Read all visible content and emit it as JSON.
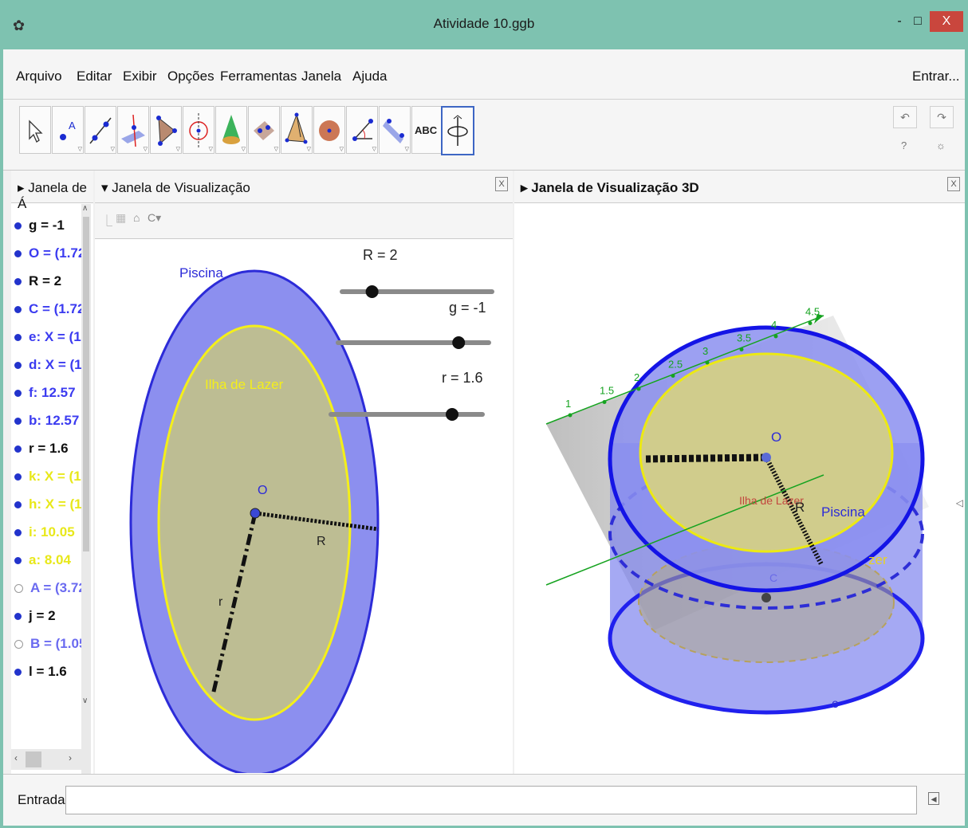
{
  "window": {
    "title": "Atividade 10.ggb",
    "minimize": "-",
    "maximize": "□",
    "close": "X"
  },
  "menu": {
    "items": [
      "Arquivo",
      "Editar",
      "Exibir",
      "Opções",
      "Ferramentas",
      "Janela",
      "Ajuda"
    ],
    "signin": "Entrar..."
  },
  "toolbar": {
    "text_tool_label": "ABC",
    "help": "?",
    "settings": "☼"
  },
  "algebra": {
    "title": "Janela de Á",
    "items": [
      {
        "text": "g = -1",
        "color": "#111111",
        "dot": "#2233cc"
      },
      {
        "text": "O = (1.72",
        "color": "#3b3bf0",
        "dot": "#2233cc"
      },
      {
        "text": "R = 2",
        "color": "#111111",
        "dot": "#2233cc"
      },
      {
        "text": "C = (1.72",
        "color": "#3b3bf0",
        "dot": "#2233cc"
      },
      {
        "text": "e: X = (1.",
        "color": "#3b3bf0",
        "dot": "#2233cc"
      },
      {
        "text": "d: X = (1",
        "color": "#3b3bf0",
        "dot": "#2233cc"
      },
      {
        "text": "f: 12.57",
        "color": "#3b3bf0",
        "dot": "#2233cc"
      },
      {
        "text": "b: 12.57",
        "color": "#3b3bf0",
        "dot": "#2233cc"
      },
      {
        "text": "r = 1.6",
        "color": "#111111",
        "dot": "#2233cc"
      },
      {
        "text": "k: X = (1.",
        "color": "#e8e81a",
        "dot": "#2233cc"
      },
      {
        "text": "h: X = (1",
        "color": "#e8e81a",
        "dot": "#2233cc"
      },
      {
        "text": "i: 10.05",
        "color": "#e8e81a",
        "dot": "#2233cc"
      },
      {
        "text": "a: 8.04",
        "color": "#e8e81a",
        "dot": "#2233cc"
      },
      {
        "text": "A = (3.72",
        "color": "#6a6af0",
        "dot": "none"
      },
      {
        "text": "j = 2",
        "color": "#111111",
        "dot": "#2233cc"
      },
      {
        "text": "B = (1.05",
        "color": "#6a6af0",
        "dot": "none"
      },
      {
        "text": "l = 1.6",
        "color": "#111111",
        "dot": "#2233cc"
      }
    ]
  },
  "view2d": {
    "title": "Janela de Visualização",
    "labels": {
      "piscina": "Piscina",
      "ilha": "Ilha de Lazer",
      "O": "O",
      "R": "R",
      "r": "r"
    },
    "sliders": [
      {
        "label": "R = 2",
        "value": 0.2
      },
      {
        "label": "g = -1",
        "value": 0.8
      },
      {
        "label": "r = 1.6",
        "value": 0.8
      }
    ]
  },
  "view3d": {
    "title": "Janela de Visualização 3D",
    "axis_ticks": [
      "1",
      "1.5",
      "2",
      "2.5",
      "3",
      "3.5",
      "4",
      "4.5"
    ],
    "labels": {
      "O": "O",
      "R": "R",
      "piscina": "Piscina",
      "zer": "zer",
      "C": "C",
      "e": "e",
      "overlap": "Ilha de Lazer"
    }
  },
  "input": {
    "label": "Entrada:",
    "value": ""
  }
}
